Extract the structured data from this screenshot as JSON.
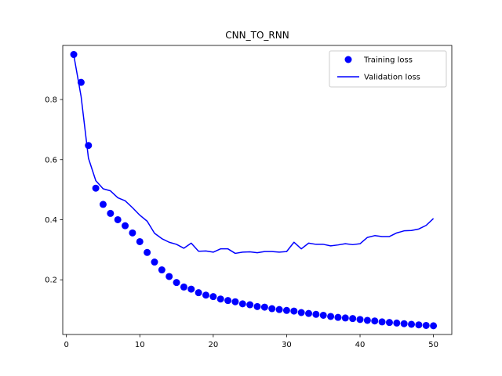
{
  "chart_data": {
    "type": "line",
    "title": "CNN_TO_RNN",
    "xlabel": "",
    "ylabel": "",
    "xlim": [
      -0.5,
      52.5
    ],
    "ylim": [
      0.018,
      0.98
    ],
    "xticks": [
      0,
      10,
      20,
      30,
      40,
      50
    ],
    "yticks": [
      0.2,
      0.4,
      0.6,
      0.8
    ],
    "xtick_labels": [
      "0",
      "10",
      "20",
      "30",
      "40",
      "50"
    ],
    "ytick_labels": [
      "0.2",
      "0.4",
      "0.6",
      "0.8"
    ],
    "grid": false,
    "legend_position": "top-right",
    "x": [
      1,
      2,
      3,
      4,
      5,
      6,
      7,
      8,
      9,
      10,
      11,
      12,
      13,
      14,
      15,
      16,
      17,
      18,
      19,
      20,
      21,
      22,
      23,
      24,
      25,
      26,
      27,
      28,
      29,
      30,
      31,
      32,
      33,
      34,
      35,
      36,
      37,
      38,
      39,
      40,
      41,
      42,
      43,
      44,
      45,
      46,
      47,
      48,
      49,
      50
    ],
    "series": [
      {
        "name": "Training loss",
        "style": "markers",
        "color": "#0000ff",
        "values": [
          0.95,
          0.857,
          0.647,
          0.505,
          0.451,
          0.421,
          0.4,
          0.38,
          0.356,
          0.327,
          0.291,
          0.259,
          0.233,
          0.211,
          0.191,
          0.176,
          0.169,
          0.157,
          0.149,
          0.144,
          0.136,
          0.131,
          0.127,
          0.12,
          0.117,
          0.111,
          0.109,
          0.104,
          0.101,
          0.098,
          0.096,
          0.091,
          0.088,
          0.085,
          0.082,
          0.078,
          0.075,
          0.073,
          0.071,
          0.068,
          0.065,
          0.063,
          0.06,
          0.058,
          0.056,
          0.054,
          0.052,
          0.05,
          0.048,
          0.047
        ]
      },
      {
        "name": "Validation loss",
        "style": "line",
        "color": "#0000ff",
        "values": [
          0.948,
          0.81,
          0.605,
          0.53,
          0.503,
          0.496,
          0.473,
          0.463,
          0.44,
          0.415,
          0.395,
          0.355,
          0.337,
          0.325,
          0.318,
          0.305,
          0.322,
          0.295,
          0.296,
          0.292,
          0.303,
          0.303,
          0.288,
          0.292,
          0.293,
          0.29,
          0.294,
          0.294,
          0.292,
          0.294,
          0.325,
          0.303,
          0.322,
          0.318,
          0.318,
          0.313,
          0.316,
          0.32,
          0.317,
          0.32,
          0.341,
          0.347,
          0.344,
          0.344,
          0.356,
          0.363,
          0.364,
          0.369,
          0.381,
          0.404
        ]
      }
    ]
  }
}
